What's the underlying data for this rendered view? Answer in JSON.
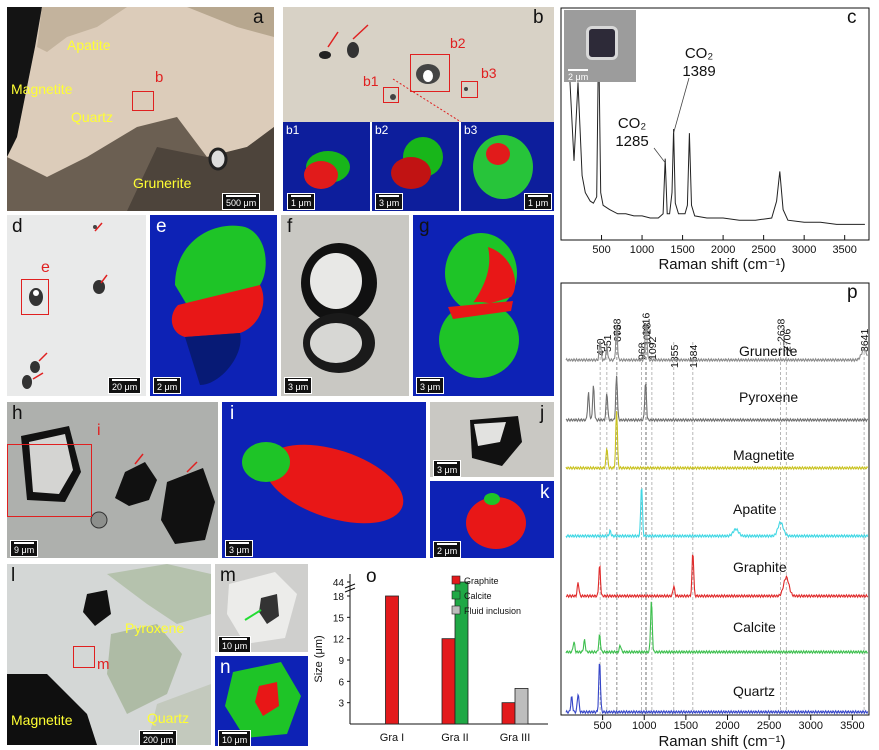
{
  "panels": {
    "a": {
      "label": "a",
      "minerals": [
        "Apatite",
        "Magnetite",
        "Quartz",
        "Grunerite"
      ],
      "box": "b",
      "scale": "500 μm"
    },
    "b": {
      "label": "b",
      "boxes": [
        "b1",
        "b2",
        "b3"
      ],
      "insets": [
        {
          "label": "b1",
          "scale": "1 μm"
        },
        {
          "label": "b2",
          "scale": "3 μm"
        },
        {
          "label": "b3",
          "scale": "1 μm"
        }
      ]
    },
    "c": {
      "label": "c",
      "inset_scale": "2 μm"
    },
    "d": {
      "label": "d",
      "box": "e",
      "scale": "20 μm"
    },
    "e": {
      "label": "e",
      "scale": "2 μm"
    },
    "f": {
      "label": "f",
      "scale": "3 μm"
    },
    "g": {
      "label": "g",
      "scale": "3 μm"
    },
    "h": {
      "label": "h",
      "box": "i",
      "scale": "9 μm"
    },
    "i": {
      "label": "i",
      "scale": "3 μm"
    },
    "j": {
      "label": "j",
      "scale": "3 μm"
    },
    "k": {
      "label": "k",
      "scale": "2 μm"
    },
    "l": {
      "label": "l",
      "minerals": [
        "Pyroxene",
        "Magnetite",
        "Quartz"
      ],
      "box": "m",
      "scale": "200 μm"
    },
    "m": {
      "label": "m",
      "scale": "10 μm"
    },
    "n": {
      "label": "n",
      "scale": "10 μm"
    }
  },
  "chart_data": [
    {
      "panel": "c",
      "type": "line",
      "xlabel": "Raman shift (cm⁻¹)",
      "xlim": [
        0,
        3800
      ],
      "xticks": [
        500,
        1000,
        1500,
        2000,
        2500,
        3000,
        3500
      ],
      "series": [
        {
          "x": [
            80,
            160,
            210,
            260,
            300,
            330,
            360,
            400,
            440,
            464,
            490,
            520,
            600,
            700,
            800,
            900,
            1000,
            1100,
            1200,
            1260,
            1285,
            1310,
            1340,
            1370,
            1389,
            1410,
            1450,
            1530,
            1560,
            1584,
            1610,
            1650,
            1800,
            2000,
            2200,
            2400,
            2600,
            2660,
            2700,
            2740,
            2800,
            3000,
            3200,
            3400,
            3600,
            3750
          ],
          "y": [
            0.95,
            0.35,
            0.72,
            0.28,
            0.2,
            0.18,
            0.16,
            0.15,
            0.18,
            0.95,
            0.2,
            0.14,
            0.12,
            0.1,
            0.1,
            0.09,
            0.09,
            0.08,
            0.08,
            0.1,
            0.36,
            0.1,
            0.1,
            0.2,
            0.5,
            0.15,
            0.1,
            0.1,
            0.14,
            0.48,
            0.14,
            0.09,
            0.08,
            0.08,
            0.07,
            0.07,
            0.08,
            0.16,
            0.3,
            0.12,
            0.07,
            0.06,
            0.06,
            0.05,
            0.05,
            0.05
          ]
        }
      ],
      "annotations": [
        {
          "text": "CO₂ 1285",
          "x": 1285
        },
        {
          "text": "CO₂ 1389",
          "x": 1389
        }
      ],
      "grid": false
    },
    {
      "panel": "o",
      "type": "bar",
      "categories": [
        "Gra I",
        "Gra II",
        "Gra III"
      ],
      "ylabel": "Size (μm)",
      "yticks": [
        3,
        6,
        9,
        12,
        15,
        18,
        44
      ],
      "axis_break": true,
      "series": [
        {
          "name": "Graphite",
          "color": "#e31a1c",
          "values": [
            18,
            12,
            3
          ]
        },
        {
          "name": "Calcite",
          "color": "#1fa845",
          "values": [
            null,
            44,
            null
          ]
        },
        {
          "name": "Fluid inclusion",
          "color": "#bdbdbd",
          "values": [
            null,
            null,
            5
          ]
        }
      ],
      "legend": "top-right"
    },
    {
      "panel": "p",
      "type": "line",
      "xlabel": "Raman shift (cm⁻¹)",
      "xlim": [
        0,
        3700
      ],
      "xticks": [
        500,
        1000,
        1500,
        2000,
        2500,
        3000,
        3500
      ],
      "peak_markers": [
        470,
        551,
        668,
        673,
        968,
        1016,
        1028,
        1092,
        1355,
        1584,
        2638,
        2706,
        3641
      ],
      "series": [
        {
          "name": "Grunerite",
          "color": "#8a8a8a",
          "peaks": [
            {
              "x": 470,
              "h": 0.6
            },
            {
              "x": 551,
              "h": 0.4
            },
            {
              "x": 668,
              "h": 1.0
            },
            {
              "x": 1016,
              "h": 0.7
            },
            {
              "x": 1028,
              "h": 0.55
            },
            {
              "x": 3641,
              "h": 0.3
            }
          ]
        },
        {
          "name": "Pyroxene",
          "color": "#707070",
          "peaks": [
            {
              "x": 330,
              "h": 0.8
            },
            {
              "x": 390,
              "h": 1.0
            },
            {
              "x": 551,
              "h": 0.8
            },
            {
              "x": 668,
              "h": 1.3
            },
            {
              "x": 1016,
              "h": 1.1
            }
          ]
        },
        {
          "name": "Magnetite",
          "color": "#c9c21f",
          "peaks": [
            {
              "x": 551,
              "h": 0.6
            },
            {
              "x": 668,
              "h": 1.7
            }
          ]
        },
        {
          "name": "Apatite",
          "color": "#3fd7e4",
          "peaks": [
            {
              "x": 590,
              "h": 0.15
            },
            {
              "x": 968,
              "h": 1.5
            },
            {
              "x": 2100,
              "h": 0.2
            },
            {
              "x": 2638,
              "h": 0.4
            }
          ]
        },
        {
          "name": "Graphite",
          "color": "#e02a2a",
          "peaks": [
            {
              "x": 206,
              "h": 0.4
            },
            {
              "x": 464,
              "h": 0.9
            },
            {
              "x": 1355,
              "h": 0.3
            },
            {
              "x": 1584,
              "h": 1.3
            },
            {
              "x": 2706,
              "h": 0.55
            }
          ]
        },
        {
          "name": "Calcite",
          "color": "#3cbf4d",
          "peaks": [
            {
              "x": 155,
              "h": 0.3
            },
            {
              "x": 282,
              "h": 0.35
            },
            {
              "x": 464,
              "h": 0.5
            },
            {
              "x": 712,
              "h": 0.2
            },
            {
              "x": 1086,
              "h": 1.5
            }
          ]
        },
        {
          "name": "Quartz",
          "color": "#3545c8",
          "peaks": [
            {
              "x": 128,
              "h": 0.45
            },
            {
              "x": 206,
              "h": 0.55
            },
            {
              "x": 464,
              "h": 1.5
            }
          ]
        }
      ]
    }
  ]
}
